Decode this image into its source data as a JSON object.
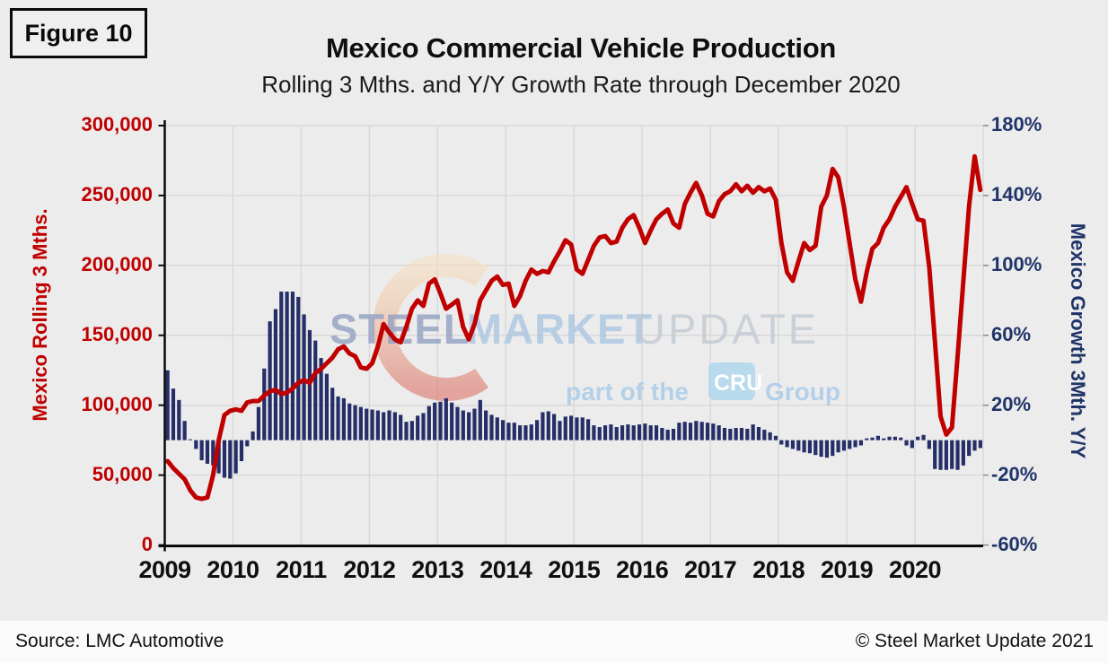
{
  "figure_label": "Figure 10",
  "title": "Mexico Commercial Vehicle Production",
  "subtitle": "Rolling 3 Mths. and Y/Y Growth Rate through December 2020",
  "footer": {
    "source": "Source: LMC Automotive",
    "copyright": "© Steel Market Update 2021"
  },
  "watermark": {
    "brand": [
      "STEEL",
      "MARKET",
      "UPDATE"
    ],
    "brand_colors": [
      "#93A0C2",
      "#A9C6E3",
      "#C2CAD4"
    ],
    "tagline_prefix": "part of the",
    "cru_badge": "CRU",
    "tagline_suffix": "Group",
    "tagline_color": "#AECDE8",
    "badge_bg": "#B2D8EC",
    "crescent_colors": [
      "#F6DFBC",
      "#EFB797",
      "#D96A5C"
    ]
  },
  "colors": {
    "background": "#ECECEC",
    "footer_background": "#FAFAFA",
    "gridline": "#D8D8D8",
    "axis_line": "#0a0a0a",
    "line_series": "#C00000",
    "bar_series": "#262E68",
    "left_axis_text": "#C00000",
    "right_axis_text": "#1F3468"
  },
  "chart_data": {
    "type": "combo-bar-line",
    "x_start": "Jan 2009",
    "x_end": "Dec 2020",
    "x_year_labels": [
      "2009",
      "2010",
      "2011",
      "2012",
      "2013",
      "2014",
      "2015",
      "2016",
      "2017",
      "2018",
      "2019",
      "2020"
    ],
    "left_axis": {
      "title": "Mexico  Rolling 3 Mths.",
      "min": 0,
      "max": 300000,
      "ticks": [
        "300,000",
        "250,000",
        "200,000",
        "150,000",
        "100,000",
        "50,000",
        "0"
      ]
    },
    "right_axis": {
      "title": "Mexico Growth 3Mth. Y/Y",
      "min": -60,
      "max": 180,
      "ticks": [
        "180%",
        "140%",
        "100%",
        "60%",
        "20%",
        "-20%",
        "-60%"
      ]
    },
    "grid": true,
    "series": [
      {
        "name": "Mexico Rolling 3 Mths.",
        "type": "line",
        "axis": "left",
        "color": "#C00000",
        "values": [
          60000,
          55000,
          51000,
          47000,
          39000,
          34000,
          33000,
          34000,
          50000,
          75000,
          93000,
          96000,
          97000,
          96000,
          102000,
          103000,
          103000,
          107000,
          110000,
          111000,
          108000,
          109000,
          112000,
          116000,
          118000,
          116000,
          123000,
          126000,
          130000,
          134000,
          140000,
          142000,
          137000,
          135000,
          127000,
          126000,
          130000,
          142000,
          158000,
          152000,
          147000,
          145000,
          156000,
          169000,
          175000,
          171000,
          187000,
          190000,
          180000,
          169000,
          172000,
          175000,
          156000,
          147000,
          158000,
          175000,
          182000,
          189000,
          192000,
          186000,
          187000,
          171000,
          178000,
          189000,
          197000,
          194000,
          196000,
          195000,
          203000,
          210000,
          218000,
          215000,
          197000,
          194000,
          204000,
          214000,
          220000,
          221000,
          216000,
          217000,
          227000,
          233000,
          236000,
          227000,
          216000,
          225000,
          233000,
          237000,
          240000,
          230000,
          227000,
          244000,
          252000,
          259000,
          250000,
          237000,
          235000,
          246000,
          251000,
          253000,
          258000,
          253000,
          257000,
          252000,
          256000,
          253000,
          255000,
          247000,
          216000,
          195000,
          189000,
          203000,
          216000,
          211000,
          214000,
          242000,
          250000,
          269000,
          263000,
          242000,
          216000,
          190000,
          174000,
          195000,
          212000,
          216000,
          227000,
          233000,
          242000,
          249000,
          256000,
          244000,
          233000,
          232000,
          199000,
          146000,
          92000,
          79000,
          84000,
          135000,
          188000,
          242000,
          278000,
          254000
        ]
      },
      {
        "name": "Mexico Growth 3Mth. Y/Y",
        "type": "bar",
        "axis": "right",
        "color": "#262E68",
        "values": [
          40,
          29.5,
          23,
          11,
          0.5,
          -5,
          -11.5,
          -13.5,
          -14.5,
          -19,
          -21.5,
          -22,
          -19,
          -12,
          -3.5,
          5,
          19,
          41,
          68,
          75,
          85,
          85,
          85,
          82,
          72,
          63,
          57,
          47,
          38,
          30,
          25,
          24,
          21,
          20,
          19,
          18,
          17.5,
          17,
          16,
          17,
          16,
          14.5,
          10.5,
          11,
          14,
          15.5,
          19.5,
          21.5,
          22,
          24,
          21.5,
          19,
          17,
          16,
          18,
          23,
          17,
          14.5,
          13,
          11.5,
          10,
          10,
          8.5,
          8.5,
          9,
          11.5,
          16,
          16.5,
          15,
          11,
          13.5,
          14,
          13,
          13,
          12,
          8.5,
          7.5,
          8.5,
          9,
          7.5,
          8.5,
          9,
          8.5,
          9,
          9.5,
          8.5,
          8.5,
          7,
          6,
          6.5,
          10,
          10.5,
          10,
          11,
          10.5,
          10,
          9.5,
          8.5,
          7,
          6.5,
          7,
          7,
          6.5,
          9,
          7.5,
          6,
          4.5,
          2.5,
          -2.5,
          -4,
          -5,
          -6,
          -7,
          -7.5,
          -8.5,
          -9.5,
          -10,
          -9,
          -7,
          -6,
          -5,
          -4,
          -3,
          1,
          1.5,
          2.5,
          1,
          2,
          2,
          1.5,
          -3,
          -4.5,
          2,
          3,
          -5,
          -16.5,
          -17,
          -17,
          -16.5,
          -17,
          -14.5,
          -9,
          -6,
          -4.5
        ]
      }
    ]
  }
}
